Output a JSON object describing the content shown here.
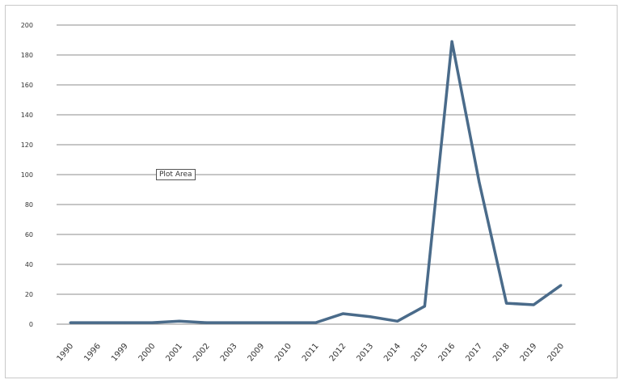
{
  "chart_data": {
    "type": "line",
    "categories": [
      "1990",
      "1996",
      "1999",
      "2000",
      "2001",
      "2002",
      "2003",
      "2009",
      "2010",
      "2011",
      "2012",
      "2013",
      "2014",
      "2015",
      "2016",
      "2017",
      "2018",
      "2019",
      "2020"
    ],
    "series": [
      {
        "values": [
          1,
          1,
          1,
          1,
          2,
          1,
          1,
          1,
          1,
          1,
          7,
          5,
          2,
          12,
          189,
          95,
          14,
          13,
          26
        ]
      }
    ],
    "ylim": [
      0,
      200
    ],
    "yticks": [
      0,
      20,
      40,
      60,
      80,
      100,
      120,
      140,
      160,
      180,
      200
    ],
    "grid": true,
    "annotation": "Plot Area",
    "line_color": "#4a6b8a"
  }
}
